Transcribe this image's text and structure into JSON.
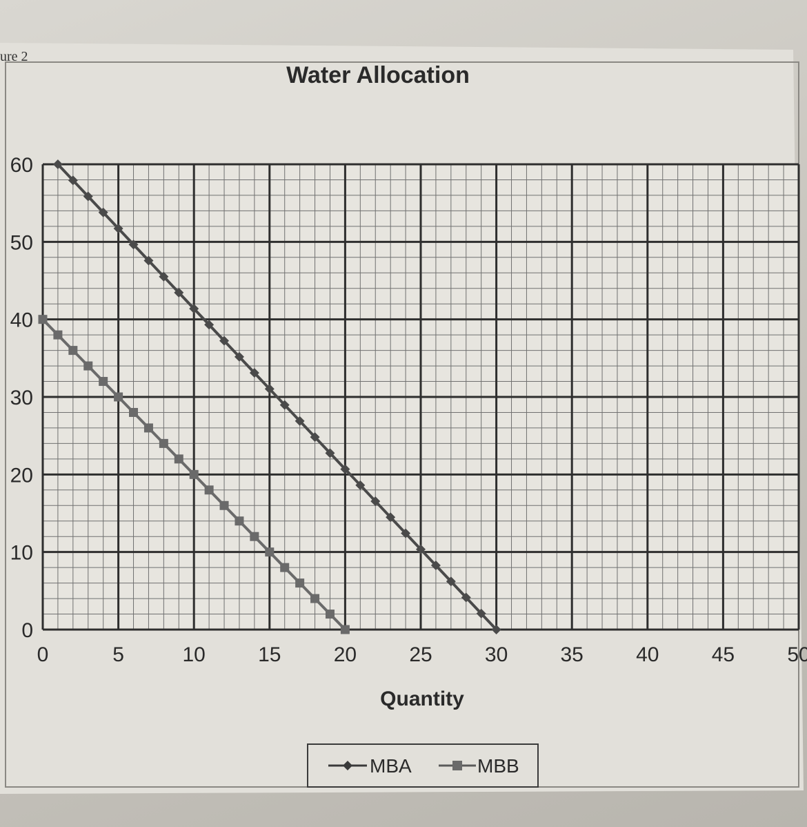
{
  "figure_label": "ure 2",
  "chart_data": {
    "type": "line",
    "title": "Water Allocation",
    "xlabel": "Quantity",
    "ylabel": "",
    "xlim": [
      0,
      50
    ],
    "ylim": [
      0,
      60
    ],
    "x_ticks": [
      0,
      5,
      10,
      15,
      20,
      25,
      30,
      35,
      40,
      45,
      50
    ],
    "y_ticks": [
      0,
      10,
      20,
      30,
      40,
      50,
      60
    ],
    "x_tick_labels": [
      "0",
      "5",
      "10",
      "15",
      "20",
      "25",
      "30",
      "35",
      "40",
      "45",
      "50"
    ],
    "y_tick_labels": [
      "0",
      "10",
      "20",
      "30",
      "40",
      "50",
      "60"
    ],
    "grid": true,
    "legend_position": "bottom",
    "series": [
      {
        "name": "MBA",
        "marker": "diamond",
        "color": "#4a4a4a",
        "x": [
          1,
          30
        ],
        "y": [
          60,
          0
        ],
        "step": 1
      },
      {
        "name": "MBB",
        "marker": "square",
        "color": "#6a6a6a",
        "x": [
          0,
          20
        ],
        "y": [
          40,
          0
        ],
        "step": 1
      }
    ]
  }
}
